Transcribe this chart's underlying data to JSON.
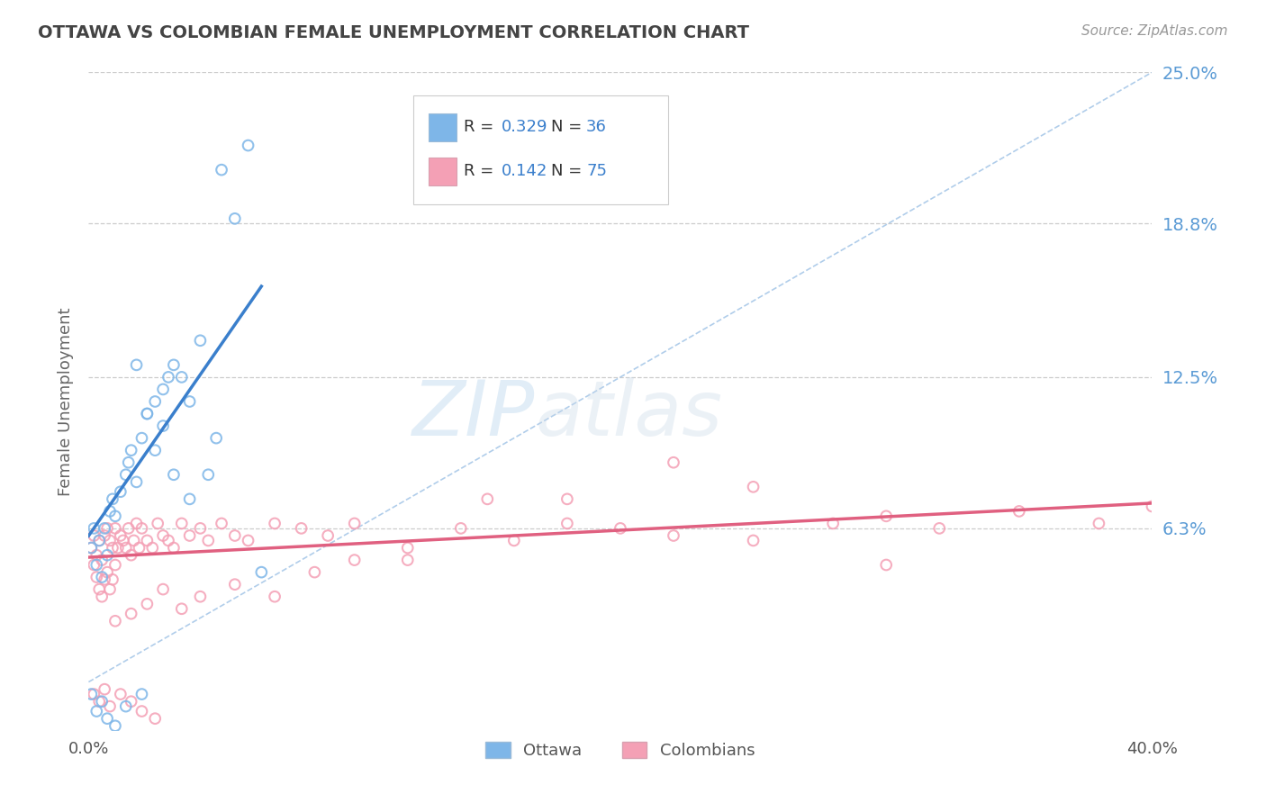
{
  "title": "OTTAWA VS COLOMBIAN FEMALE UNEMPLOYMENT CORRELATION CHART",
  "source_text": "Source: ZipAtlas.com",
  "ylabel": "Female Unemployment",
  "xlim": [
    0.0,
    0.4
  ],
  "ylim": [
    -0.02,
    0.25
  ],
  "plot_ylim": [
    -0.02,
    0.25
  ],
  "yticks": [
    0.063,
    0.125,
    0.188,
    0.25
  ],
  "ytick_labels": [
    "6.3%",
    "12.5%",
    "18.8%",
    "25.0%"
  ],
  "ottawa_color": "#7EB6E8",
  "colombian_color": "#F4A0B5",
  "ottawa_line_color": "#3A7FCC",
  "colombian_line_color": "#E06080",
  "diag_line_color": "#A8C8E8",
  "ottawa_R": "0.329",
  "ottawa_N": "36",
  "colombian_R": "0.142",
  "colombian_N": "75",
  "background_color": "#FFFFFF",
  "tick_color": "#5B9BD5",
  "legend_value_color": "#3A7FCC"
}
